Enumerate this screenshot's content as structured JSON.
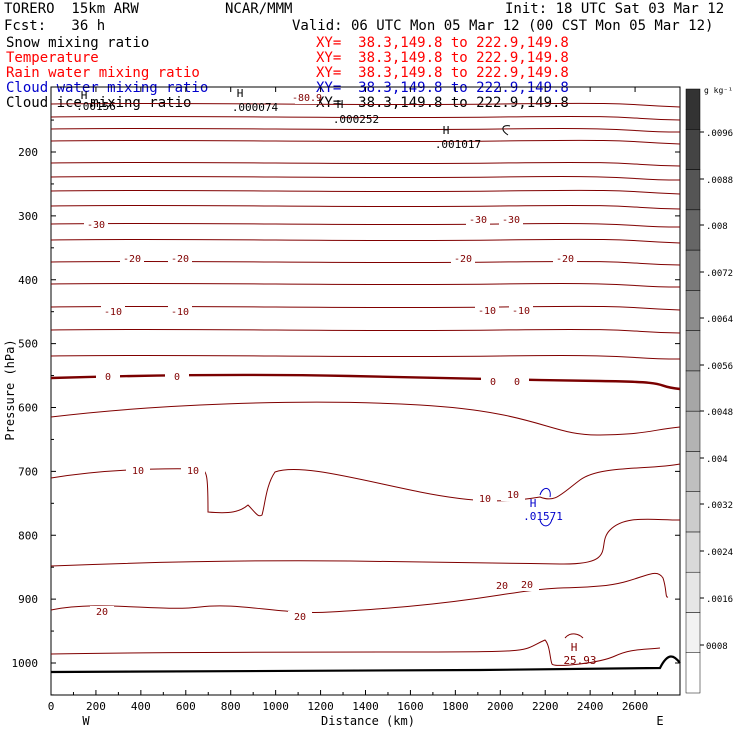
{
  "header": {
    "model": "TORERO  15km ARW",
    "forecast": "Fcst:   36 h",
    "org": "NCAR/MMM",
    "init": "Init: 18 UTC Sat 03 Mar 12",
    "valid": "Valid: 06 UTC Mon 05 Mar 12 (00 CST Mon 05 Mar 12)"
  },
  "fields": [
    {
      "name": "Snow mixing ratio",
      "color": "#000000",
      "xy": "XY=  38.3,149.8 to 222.9,149.8",
      "xy_color": "#ff0000"
    },
    {
      "name": "Temperature",
      "color": "#ff0000",
      "xy": "XY=  38.3,149.8 to 222.9,149.8",
      "xy_color": "#ff0000"
    },
    {
      "name": "Rain water mixing ratio",
      "color": "#ff0000",
      "xy": "XY=  38.3,149.8 to 222.9,149.8",
      "xy_color": "#ff0000"
    },
    {
      "name": "Cloud water mixing ratio",
      "color": "#0000cc",
      "xy": "XY=  38.3,149.8 to 222.9,149.8",
      "xy_color": "#0000cc"
    },
    {
      "name": "Cloud ice mixing ratio",
      "color": "#000000",
      "xy": "XY=  38.3,149.8 to 222.9,149.8",
      "xy_color": "#000000"
    }
  ],
  "chart_data": {
    "type": "contour",
    "xlabel": "Distance (km)",
    "ylabel": "Pressure (hPa)",
    "x_ticks": [
      0,
      200,
      400,
      600,
      800,
      1000,
      1200,
      1400,
      1600,
      1800,
      2000,
      2200,
      2400,
      2600
    ],
    "xlim": [
      0,
      2800
    ],
    "y_ticks": [
      200,
      300,
      400,
      500,
      600,
      700,
      800,
      900,
      1000
    ],
    "ylim": [
      1050,
      100
    ],
    "endpoints": {
      "left": "W",
      "right": "E"
    },
    "colorbar": {
      "unit": "g kg⁻¹",
      "labels": [
        "0008",
        ".0016",
        ".0024",
        ".0032",
        ".004",
        ".0048",
        ".0056",
        ".0064",
        ".0072",
        ".008",
        ".0088",
        ".0096"
      ],
      "shades": [
        "#ffffff",
        "#f2f2f2",
        "#e6e6e6",
        "#d9d9d9",
        "#cccccc",
        "#bfbfbf",
        "#b3b3b3",
        "#a6a6a6",
        "#999999",
        "#8c8c8c",
        "#7a7a7a",
        "#666666",
        "#555555",
        "#444444",
        "#333333"
      ]
    },
    "temperature_labels": [
      "-30",
      "-20",
      "-10",
      "0",
      "10",
      "20",
      "-30",
      "-20",
      "-10",
      "0",
      "10",
      "20",
      "-80.9"
    ],
    "extrema": [
      ".00156",
      ".000074",
      ".000252",
      ".001017",
      ".01571",
      "25.93"
    ],
    "extrema_marker": "H",
    "colors": {
      "temperature": "#800000",
      "cloud_water": "#0000cc",
      "terrain": "#000000"
    }
  }
}
